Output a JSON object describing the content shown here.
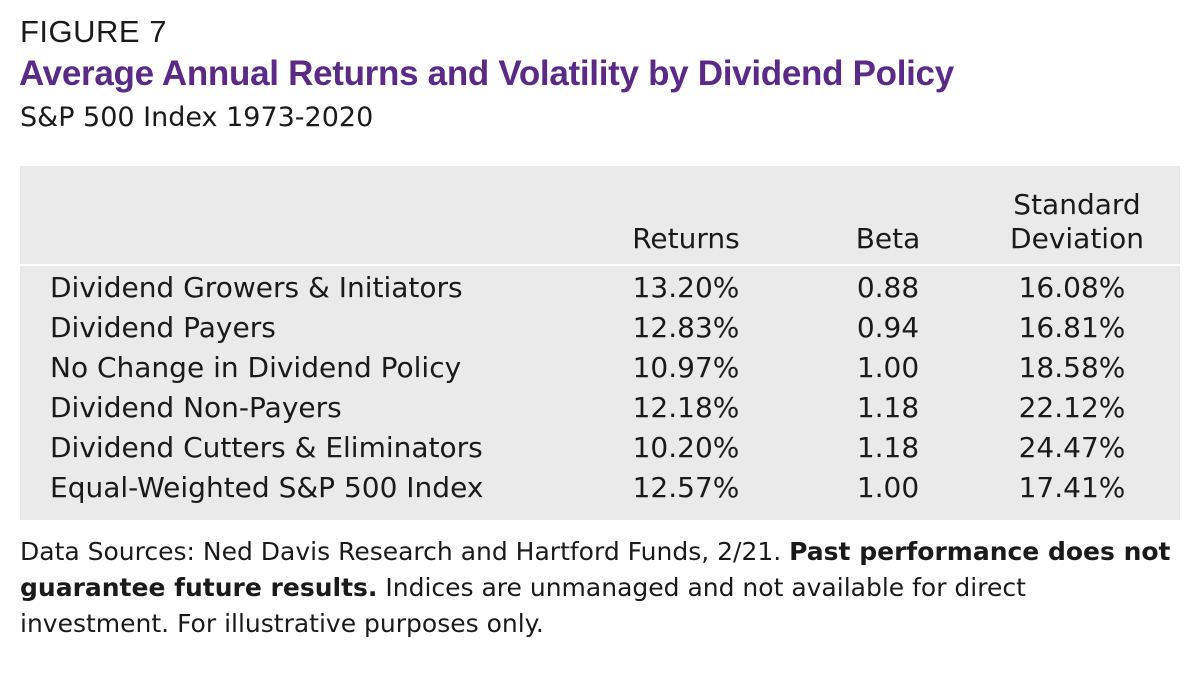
{
  "figure_label": "FIGURE 7",
  "chart_data": {
    "type": "table",
    "title": "Average Annual Returns and Volatility by Dividend Policy",
    "subtitle": "S&P 500 Index 1973-2020",
    "columns": [
      "",
      "Returns",
      "Beta",
      "Standard\nDeviation"
    ],
    "column_headers": {
      "returns": "Returns",
      "beta": "Beta",
      "sd_line1": "Standard",
      "sd_line2": "Deviation"
    },
    "rows": [
      {
        "label": "Dividend Growers & Initiators",
        "returns": "13.20%",
        "beta": "0.88",
        "sd": "16.08%"
      },
      {
        "label": "Dividend Payers",
        "returns": "12.83%",
        "beta": "0.94",
        "sd": "16.81%"
      },
      {
        "label": "No Change in Dividend Policy",
        "returns": "10.97%",
        "beta": "1.00",
        "sd": "18.58%"
      },
      {
        "label": "Dividend Non-Payers",
        "returns": "12.18%",
        "beta": "1.18",
        "sd": "22.12%"
      },
      {
        "label": "Dividend Cutters & Eliminators",
        "returns": "10.20%",
        "beta": "1.18",
        "sd": "24.47%"
      },
      {
        "label": "Equal-Weighted S&P 500 Index",
        "returns": "12.57%",
        "beta": "1.00",
        "sd": "17.41%"
      }
    ]
  },
  "footnote": {
    "part1": "Data Sources: Ned Davis Research and Hartford Funds, 2/21. ",
    "bold": "Past performance does not guarantee future results.",
    "part2": " Indices are unmanaged and not available for direct investment. For illustrative purposes only."
  },
  "colors": {
    "title": "#5b2a86",
    "panel": "#eaeaea",
    "text": "#1a1a1a"
  }
}
